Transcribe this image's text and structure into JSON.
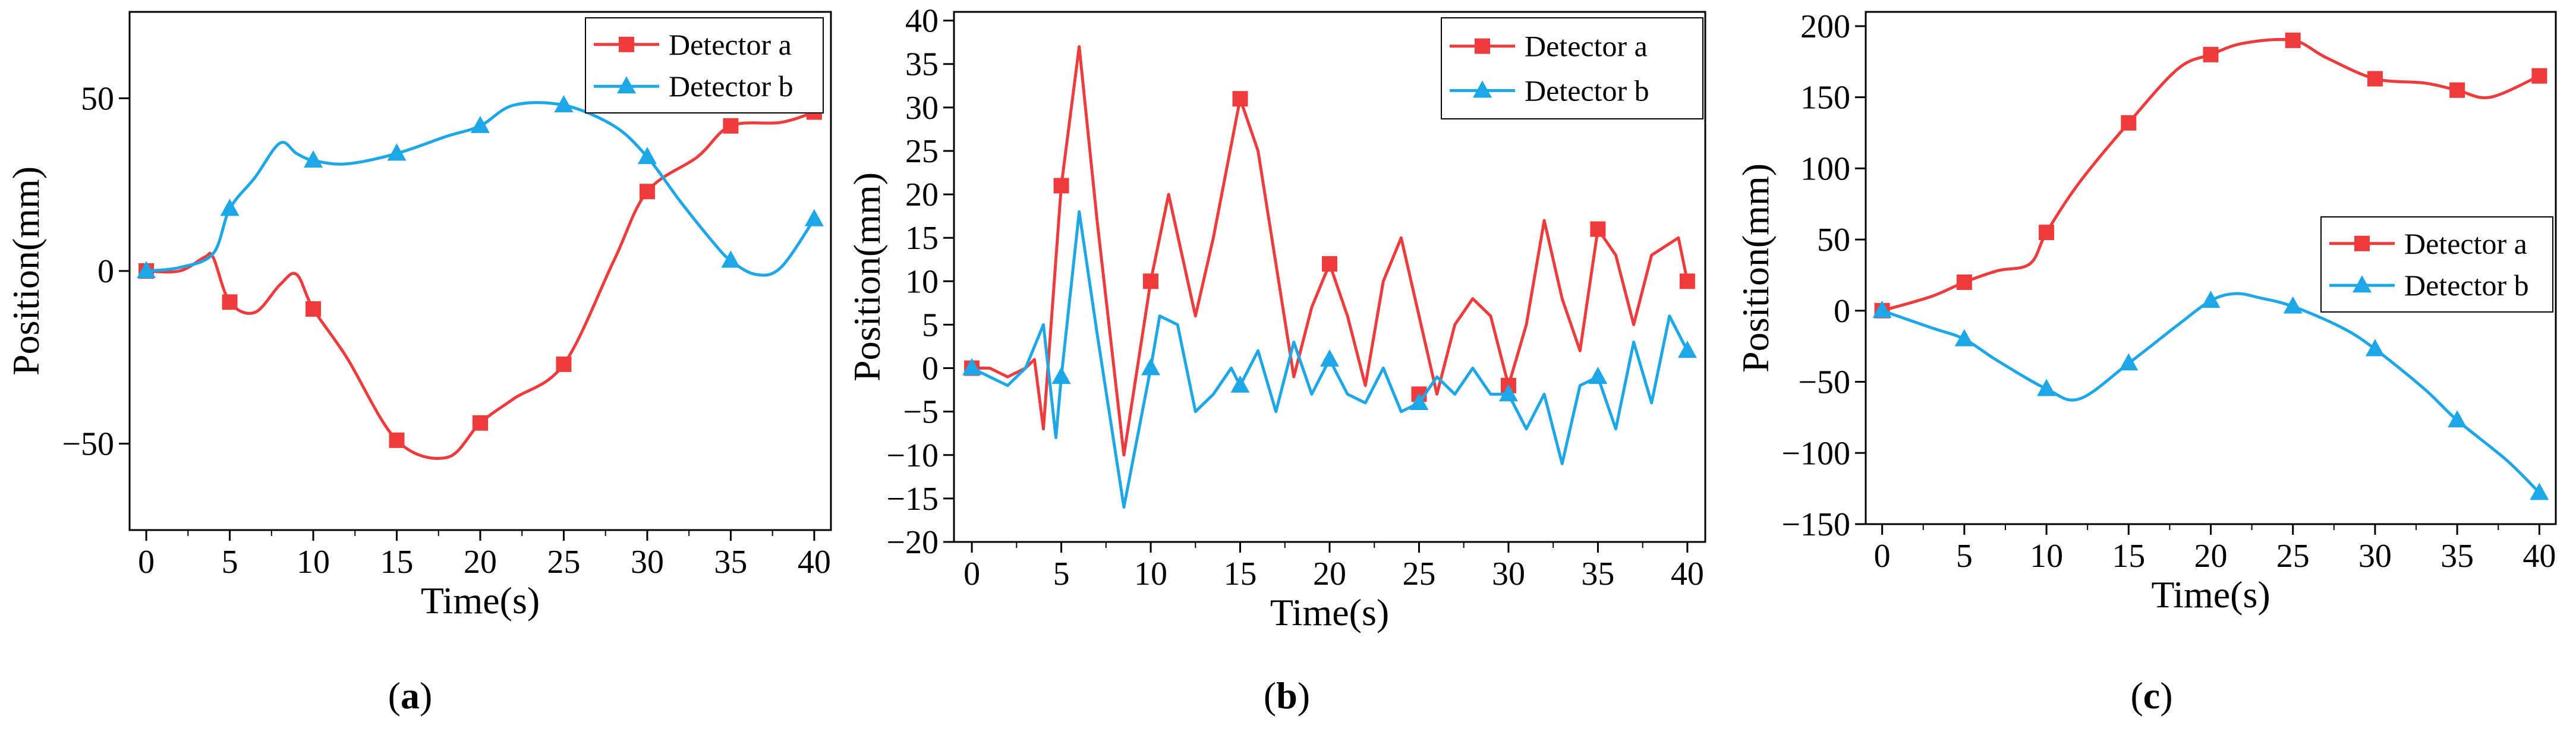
{
  "figure": {
    "panel_labels": [
      "(a)",
      "(b)",
      "(c)"
    ],
    "colors": {
      "detector_a": "#ef3b3b",
      "detector_b": "#1ea7e6"
    }
  },
  "chart_data": [
    {
      "type": "line",
      "panel": "a",
      "title": "",
      "xlabel": "Time(s)",
      "ylabel": "Position(mm)",
      "xlim": [
        -1,
        41
      ],
      "ylim": [
        -75,
        75
      ],
      "xticks": [
        0,
        5,
        10,
        15,
        20,
        25,
        30,
        35,
        40
      ],
      "yticks": [
        -50,
        0,
        50
      ],
      "legend": "top-right",
      "series": [
        {
          "name": "Detector a",
          "marker": "square",
          "color": "#ef3b3b",
          "x": [
            0,
            2,
            3.5,
            4,
            5,
            6.5,
            8,
            9,
            10,
            12,
            15,
            18,
            20,
            22,
            25,
            28,
            30,
            33,
            35,
            38,
            40
          ],
          "y": [
            0,
            0,
            4,
            4,
            -9,
            -12,
            -4,
            -1,
            -11,
            -25,
            -49,
            -54,
            -44,
            -37,
            -27,
            3,
            23,
            33,
            42,
            43,
            46
          ],
          "markers_x": [
            0,
            5,
            10,
            15,
            20,
            25,
            30,
            35,
            40
          ],
          "markers_y": [
            0,
            -9,
            -11,
            -49,
            -44,
            -27,
            23,
            42,
            46
          ]
        },
        {
          "name": "Detector b",
          "marker": "triangle",
          "color": "#1ea7e6",
          "x": [
            0,
            2,
            4,
            5,
            6.5,
            8,
            9,
            10,
            12,
            15,
            18,
            20,
            22,
            25,
            28,
            30,
            32,
            34,
            35,
            36.5,
            38,
            40
          ],
          "y": [
            0,
            1,
            5,
            18,
            27,
            37,
            34,
            32,
            31,
            34,
            39,
            42,
            48,
            48,
            42,
            33,
            20,
            8,
            3,
            -1,
            1,
            15
          ],
          "markers_x": [
            0,
            5,
            10,
            15,
            20,
            25,
            30,
            35,
            40
          ],
          "markers_y": [
            0,
            18,
            32,
            34,
            42,
            48,
            33,
            3,
            15
          ]
        }
      ]
    },
    {
      "type": "line",
      "panel": "b",
      "title": "",
      "xlabel": "Time(s)",
      "ylabel": "Position(mm)",
      "xlim": [
        -1,
        41
      ],
      "ylim": [
        -20,
        41
      ],
      "xticks": [
        0,
        5,
        10,
        15,
        20,
        25,
        30,
        35,
        40
      ],
      "yticks": [
        -20,
        -15,
        -10,
        -5,
        0,
        5,
        10,
        15,
        20,
        25,
        30,
        35,
        40
      ],
      "legend": "top-right",
      "series": [
        {
          "name": "Detector a",
          "marker": "square",
          "color": "#ef3b3b",
          "x": [
            0,
            1,
            2,
            3,
            3.5,
            4,
            5,
            6,
            7,
            8.5,
            10,
            11,
            12.5,
            13.5,
            15,
            16,
            17,
            18,
            19,
            20,
            21,
            22,
            23,
            24,
            25,
            26,
            27,
            28,
            29,
            30,
            31,
            32,
            33,
            34,
            35,
            36,
            37,
            38,
            39.5,
            40
          ],
          "y": [
            0,
            0,
            -1,
            0,
            1,
            -7,
            21,
            37,
            17,
            -10,
            10,
            20,
            6,
            15,
            31,
            25,
            12,
            -1,
            7,
            12,
            6,
            -2,
            10,
            15,
            6,
            -3,
            5,
            8,
            6,
            -2,
            5,
            17,
            8,
            2,
            16,
            13,
            5,
            13,
            15,
            10
          ],
          "markers_x": [
            0,
            5,
            10,
            15,
            20,
            25,
            30,
            35,
            40
          ],
          "markers_y": [
            0,
            21,
            10,
            31,
            12,
            -3,
            -2,
            16,
            10
          ]
        },
        {
          "name": "Detector b",
          "marker": "triangle",
          "color": "#1ea7e6",
          "x": [
            0,
            1,
            2,
            3,
            4,
            4.7,
            5,
            6,
            7,
            8.5,
            10,
            10.5,
            11.5,
            12.5,
            13.5,
            14.5,
            15,
            16,
            17,
            18,
            19,
            20,
            21,
            22,
            23,
            24,
            25,
            26,
            27,
            28,
            29,
            30,
            31,
            32,
            33,
            34,
            35,
            36,
            37,
            38,
            39,
            40
          ],
          "y": [
            0,
            -1,
            -2,
            0,
            5,
            -8,
            -1,
            18,
            4,
            -16,
            0,
            6,
            5,
            -5,
            -3,
            0,
            -2,
            2,
            -5,
            3,
            -3,
            1,
            -3,
            -4,
            0,
            -5,
            -4,
            -1,
            -3,
            0,
            -3,
            -3,
            -7,
            -3,
            -11,
            -2,
            -1,
            -7,
            3,
            -4,
            6,
            2
          ],
          "markers_x": [
            0,
            5,
            10,
            15,
            20,
            25,
            30,
            35,
            40
          ],
          "markers_y": [
            0,
            -1,
            0,
            -2,
            1,
            -4,
            -3,
            -1,
            2
          ]
        }
      ]
    },
    {
      "type": "line",
      "panel": "c",
      "title": "",
      "xlabel": "Time(s)",
      "ylabel": "Position(mm)",
      "xlim": [
        -1,
        41
      ],
      "ylim": [
        -150,
        210
      ],
      "xticks": [
        0,
        5,
        10,
        15,
        20,
        25,
        30,
        35,
        40
      ],
      "yticks": [
        -150,
        -100,
        -50,
        0,
        50,
        100,
        150,
        200
      ],
      "legend": "center-right",
      "series": [
        {
          "name": "Detector a",
          "marker": "square",
          "color": "#ef3b3b",
          "x": [
            0,
            3,
            5,
            7,
            9,
            10,
            12,
            15,
            18,
            20,
            22,
            25,
            27,
            30,
            33,
            35,
            37,
            40
          ],
          "y": [
            0,
            10,
            20,
            28,
            33,
            55,
            90,
            132,
            170,
            180,
            188,
            190,
            178,
            163,
            160,
            155,
            150,
            165
          ],
          "markers_x": [
            0,
            5,
            10,
            15,
            20,
            25,
            30,
            35,
            40
          ],
          "markers_y": [
            0,
            20,
            55,
            132,
            180,
            190,
            163,
            155,
            165
          ]
        },
        {
          "name": "Detector b",
          "marker": "triangle",
          "color": "#1ea7e6",
          "x": [
            0,
            3,
            5,
            7,
            10,
            12,
            15,
            18,
            20,
            21.5,
            23,
            25,
            28,
            30,
            33,
            35,
            38,
            40
          ],
          "y": [
            0,
            -12,
            -20,
            -35,
            -55,
            -62,
            -37,
            -10,
            7,
            12,
            9,
            3,
            -12,
            -27,
            -55,
            -77,
            -105,
            -128
          ],
          "markers_x": [
            0,
            5,
            10,
            15,
            20,
            25,
            30,
            35,
            40
          ],
          "markers_y": [
            0,
            -20,
            -55,
            -37,
            7,
            3,
            -27,
            -77,
            -128
          ]
        }
      ]
    }
  ]
}
